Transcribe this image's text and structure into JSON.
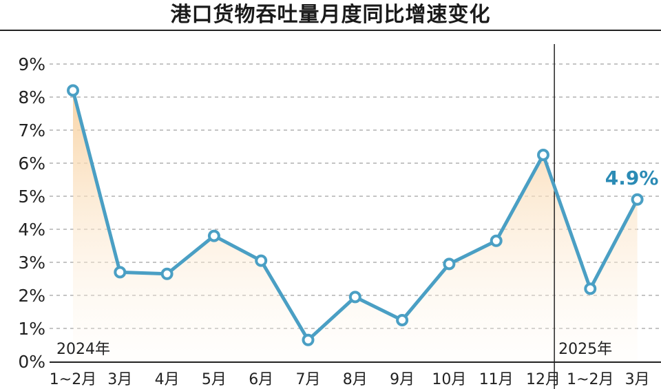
{
  "header": {
    "title": "港口货物吞吐量月度同比增速变化"
  },
  "chart_data": {
    "type": "area",
    "title": "港口货物吞吐量月度同比增速变化",
    "xlabel": "",
    "ylabel": "",
    "categories": [
      "1~2月",
      "3月",
      "4月",
      "5月",
      "6月",
      "7月",
      "8月",
      "9月",
      "10月",
      "11月",
      "12月",
      "1~2月",
      "3月"
    ],
    "series": [
      {
        "values": [
          8.2,
          2.7,
          2.65,
          3.8,
          3.05,
          0.65,
          1.95,
          1.25,
          2.95,
          3.65,
          6.25,
          2.2,
          4.9
        ]
      }
    ],
    "ylim": [
      0,
      9
    ],
    "yticks": [
      0,
      1,
      2,
      3,
      4,
      5,
      6,
      7,
      8,
      9
    ],
    "ytick_labels": [
      "0%",
      "1%",
      "2%",
      "3%",
      "4%",
      "5%",
      "6%",
      "7%",
      "8%",
      "9%"
    ],
    "grid": "horizontal-dashed",
    "year_labels": [
      {
        "label": "2024年",
        "start_index": 0
      },
      {
        "label": "2025年",
        "start_index": 11
      }
    ],
    "annotations": [
      {
        "index": 12,
        "text": "4.9%"
      }
    ],
    "colors": {
      "line": "#4a9fc4",
      "marker_fill": "#ffffff",
      "area_top": "#f7cc96",
      "area_bottom": "#fffaf3",
      "label": "#2b8bb5",
      "grid": "#b0b0b0"
    }
  }
}
